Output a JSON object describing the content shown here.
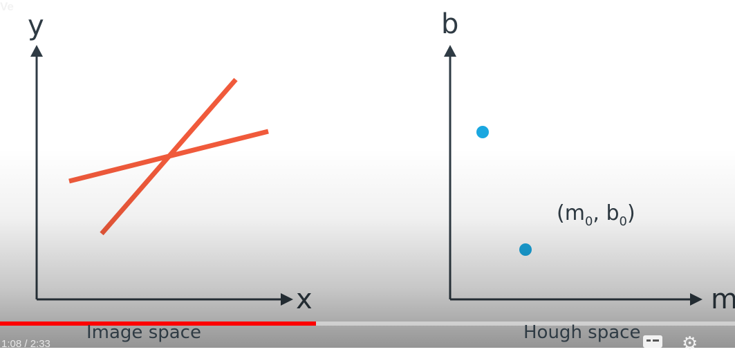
{
  "image_space": {
    "y_label": "y",
    "x_label": "x",
    "caption": "Image space",
    "line_color": "#f05a3b"
  },
  "hough_space": {
    "y_label": "b",
    "x_label": "m",
    "caption": "Hough space",
    "point_color": "#1aa7e0",
    "annotation": {
      "open": "(m",
      "sub0": "0",
      "mid": ", b",
      "sub1": "0",
      "close": ")"
    }
  },
  "player": {
    "time": "1:08 / 2:33",
    "progress_fraction": 0.43,
    "progress_color": "#ff0000",
    "tag": "Ve",
    "icons": [
      "captions-icon",
      "settings-gear-icon"
    ]
  }
}
